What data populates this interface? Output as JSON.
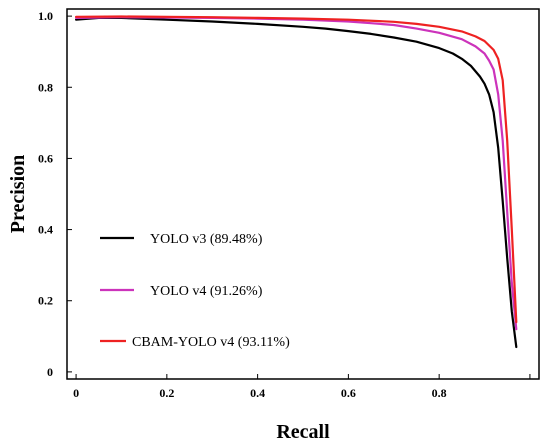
{
  "chart_data": {
    "type": "line",
    "title": "",
    "xlabel": "Recall",
    "ylabel": "Precision",
    "xlim": [
      -0.02,
      1.02
    ],
    "ylim": [
      -0.02,
      1.02
    ],
    "xticks": [
      0,
      0.2,
      0.4,
      0.6,
      0.8,
      1.0
    ],
    "xtick_labels": [
      "0",
      "0.2",
      "0.4",
      "0.6",
      "0.8",
      ""
    ],
    "yticks": [
      0,
      0.2,
      0.4,
      0.6,
      0.8,
      1.0
    ],
    "ytick_labels": [
      "0",
      "0.2",
      "0.4",
      "0.6",
      "0.8",
      "1.0"
    ],
    "grid": false,
    "legend_position": "lower-left",
    "series": [
      {
        "name": "YOLO v3 (89.48%)",
        "color": "#000000",
        "x": [
          0,
          0.05,
          0.1,
          0.2,
          0.3,
          0.4,
          0.5,
          0.55,
          0.6,
          0.65,
          0.7,
          0.75,
          0.8,
          0.83,
          0.85,
          0.87,
          0.89,
          0.9,
          0.91,
          0.92,
          0.93,
          0.94,
          0.95,
          0.96,
          0.97
        ],
        "y": [
          0.99,
          0.995,
          0.995,
          0.99,
          0.985,
          0.978,
          0.97,
          0.965,
          0.958,
          0.95,
          0.94,
          0.928,
          0.91,
          0.895,
          0.88,
          0.86,
          0.83,
          0.81,
          0.78,
          0.73,
          0.63,
          0.48,
          0.32,
          0.17,
          0.07
        ]
      },
      {
        "name": "YOLO v4 (91.26%)",
        "color": "#cc33bb",
        "x": [
          0,
          0.1,
          0.2,
          0.3,
          0.4,
          0.5,
          0.6,
          0.65,
          0.7,
          0.75,
          0.8,
          0.85,
          0.88,
          0.9,
          0.91,
          0.92,
          0.93,
          0.94,
          0.95,
          0.96,
          0.97
        ],
        "y": [
          0.995,
          0.997,
          0.996,
          0.995,
          0.993,
          0.99,
          0.985,
          0.98,
          0.975,
          0.965,
          0.953,
          0.935,
          0.915,
          0.895,
          0.875,
          0.85,
          0.78,
          0.65,
          0.45,
          0.25,
          0.12
        ]
      },
      {
        "name": "CBAM-YOLO v4 (93.11%)",
        "color": "#ee2222",
        "x": [
          0,
          0.1,
          0.2,
          0.3,
          0.4,
          0.5,
          0.6,
          0.7,
          0.75,
          0.8,
          0.85,
          0.88,
          0.9,
          0.92,
          0.93,
          0.94,
          0.95,
          0.96,
          0.97
        ],
        "y": [
          0.998,
          0.999,
          0.998,
          0.997,
          0.995,
          0.993,
          0.99,
          0.984,
          0.978,
          0.97,
          0.957,
          0.943,
          0.93,
          0.905,
          0.88,
          0.82,
          0.65,
          0.4,
          0.14
        ]
      }
    ]
  }
}
